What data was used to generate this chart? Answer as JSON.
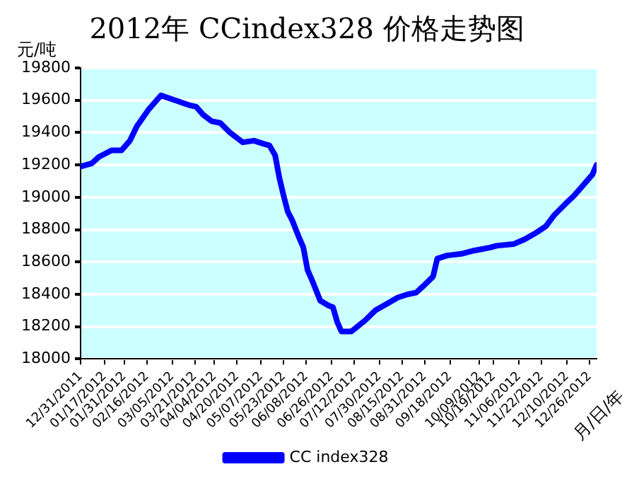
{
  "chart_data": {
    "type": "line",
    "title": "2012年 CCindex328 价格走势图",
    "ylabel": "元/吨",
    "xlabel": "月/日/年",
    "series": [
      {
        "name": "CC index328",
        "color": "#0000ff",
        "x": [
          "2011-12-31",
          "2012-01-08",
          "2012-01-13",
          "2012-01-22",
          "2012-01-29",
          "2012-02-04",
          "2012-02-09",
          "2012-02-17",
          "2012-02-26",
          "2012-03-07",
          "2012-03-17",
          "2012-03-22",
          "2012-03-27",
          "2012-04-02",
          "2012-04-08",
          "2012-04-15",
          "2012-04-24",
          "2012-05-02",
          "2012-05-09",
          "2012-05-13",
          "2012-05-17",
          "2012-05-20",
          "2012-05-23",
          "2012-05-26",
          "2012-05-29",
          "2012-06-03",
          "2012-06-06",
          "2012-06-09",
          "2012-06-13",
          "2012-06-18",
          "2012-06-24",
          "2012-06-27",
          "2012-06-30",
          "2012-07-03",
          "2012-07-10",
          "2012-07-13",
          "2012-07-20",
          "2012-07-27",
          "2012-08-04",
          "2012-08-12",
          "2012-08-19",
          "2012-08-25",
          "2012-08-30",
          "2012-09-06",
          "2012-09-09",
          "2012-09-16",
          "2012-09-26",
          "2012-10-05",
          "2012-10-11",
          "2012-10-17",
          "2012-10-21",
          "2012-11-02",
          "2012-11-10",
          "2012-11-18",
          "2012-11-25",
          "2012-12-01",
          "2012-12-09",
          "2012-12-15",
          "2012-12-22",
          "2012-12-28",
          "2012-12-31"
        ],
        "values": [
          19190,
          19210,
          19250,
          19290,
          19290,
          19350,
          19440,
          19540,
          19630,
          19600,
          19570,
          19560,
          19510,
          19470,
          19460,
          19400,
          19340,
          19350,
          19330,
          19320,
          19260,
          19120,
          19010,
          18910,
          18860,
          18750,
          18690,
          18550,
          18470,
          18360,
          18330,
          18320,
          18230,
          18170,
          18170,
          18190,
          18240,
          18300,
          18340,
          18380,
          18400,
          18410,
          18450,
          18510,
          18620,
          18640,
          18650,
          18670,
          18680,
          18690,
          18700,
          18710,
          18740,
          18780,
          18820,
          18890,
          18960,
          19010,
          19080,
          19140,
          19200
        ]
      }
    ],
    "xlim": [
      "2011-12-31",
      "2012-12-31"
    ],
    "xticks": [
      {
        "value": "2011-12-31",
        "label": "12/31/2011"
      },
      {
        "value": "2012-01-17",
        "label": "01/17/2012"
      },
      {
        "value": "2012-01-31",
        "label": "01/31/2012"
      },
      {
        "value": "2012-02-16",
        "label": "02/16/2012"
      },
      {
        "value": "2012-03-05",
        "label": "03/05/2012"
      },
      {
        "value": "2012-03-21",
        "label": "03/21/2012"
      },
      {
        "value": "2012-04-04",
        "label": "04/04/2012"
      },
      {
        "value": "2012-04-20",
        "label": "04/20/2012"
      },
      {
        "value": "2012-05-07",
        "label": "05/07/2012"
      },
      {
        "value": "2012-05-23",
        "label": "05/23/2012"
      },
      {
        "value": "2012-06-08",
        "label": "06/08/2012"
      },
      {
        "value": "2012-06-26",
        "label": "06/26/2012"
      },
      {
        "value": "2012-07-12",
        "label": "07/12/2012"
      },
      {
        "value": "2012-07-30",
        "label": "07/30/2012"
      },
      {
        "value": "2012-08-15",
        "label": "08/15/2012"
      },
      {
        "value": "2012-08-31",
        "label": "08/31/2012"
      },
      {
        "value": "2012-09-18",
        "label": "09/18/2012"
      },
      {
        "value": "2012-10-09",
        "label": "10/09/2012"
      },
      {
        "value": "2012-10-19",
        "label": "10/19/2012"
      },
      {
        "value": "2012-11-06",
        "label": "11/06/2012"
      },
      {
        "value": "2012-11-22",
        "label": "11/22/2012"
      },
      {
        "value": "2012-12-10",
        "label": "12/10/2012"
      },
      {
        "value": "2012-12-26",
        "label": "12/26/2012"
      }
    ],
    "ylim": [
      18000,
      19800
    ],
    "yticks": [
      18000,
      18200,
      18400,
      18600,
      18800,
      19000,
      19200,
      19400,
      19600,
      19800
    ],
    "grid": "y",
    "legend": "bottom",
    "marker": "none",
    "line_style": "solid"
  }
}
